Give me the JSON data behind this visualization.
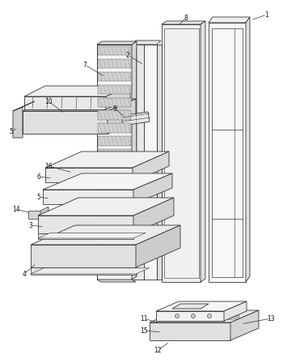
{
  "bg_color": "#ffffff",
  "line_color": "#333333",
  "lw": 0.6,
  "figsize": [
    3.5,
    4.48
  ],
  "dpi": 100
}
